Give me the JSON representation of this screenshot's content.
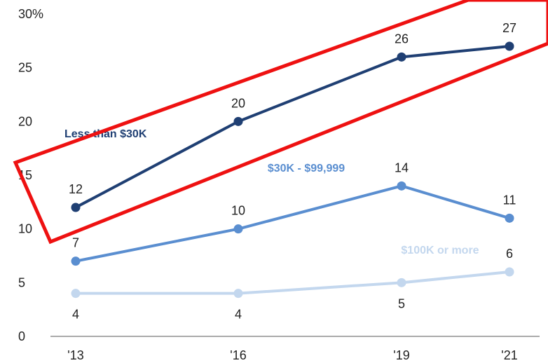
{
  "chart_data": {
    "type": "line",
    "categories": [
      "'13",
      "'16",
      "'19",
      "'21"
    ],
    "ylim": [
      0,
      30
    ],
    "y_ticks": [
      {
        "value": 0,
        "label": "0"
      },
      {
        "value": 5,
        "label": "5"
      },
      {
        "value": 10,
        "label": "10"
      },
      {
        "value": 15,
        "label": "15"
      },
      {
        "value": 20,
        "label": "20"
      },
      {
        "value": 25,
        "label": "25"
      },
      {
        "value": 30,
        "label": "30%"
      }
    ],
    "grid": false,
    "series": [
      {
        "name": "Less than $30K",
        "color": "#1f3f73",
        "values": [
          12,
          20,
          26,
          27
        ],
        "labels": [
          "12",
          "20",
          "26",
          "27"
        ]
      },
      {
        "name": "$30K - $99,999",
        "color": "#5a8ed0",
        "values": [
          7,
          10,
          14,
          11
        ],
        "labels": [
          "7",
          "10",
          "14",
          "11"
        ]
      },
      {
        "name": "$100K or more",
        "color": "#c3d7ee",
        "values": [
          4,
          4,
          5,
          6
        ],
        "labels": [
          "4",
          "4",
          "5",
          "6"
        ]
      }
    ],
    "annotations": [
      {
        "type": "highlight-box",
        "color": "#ee1111",
        "target": "Less than $30K"
      }
    ]
  }
}
